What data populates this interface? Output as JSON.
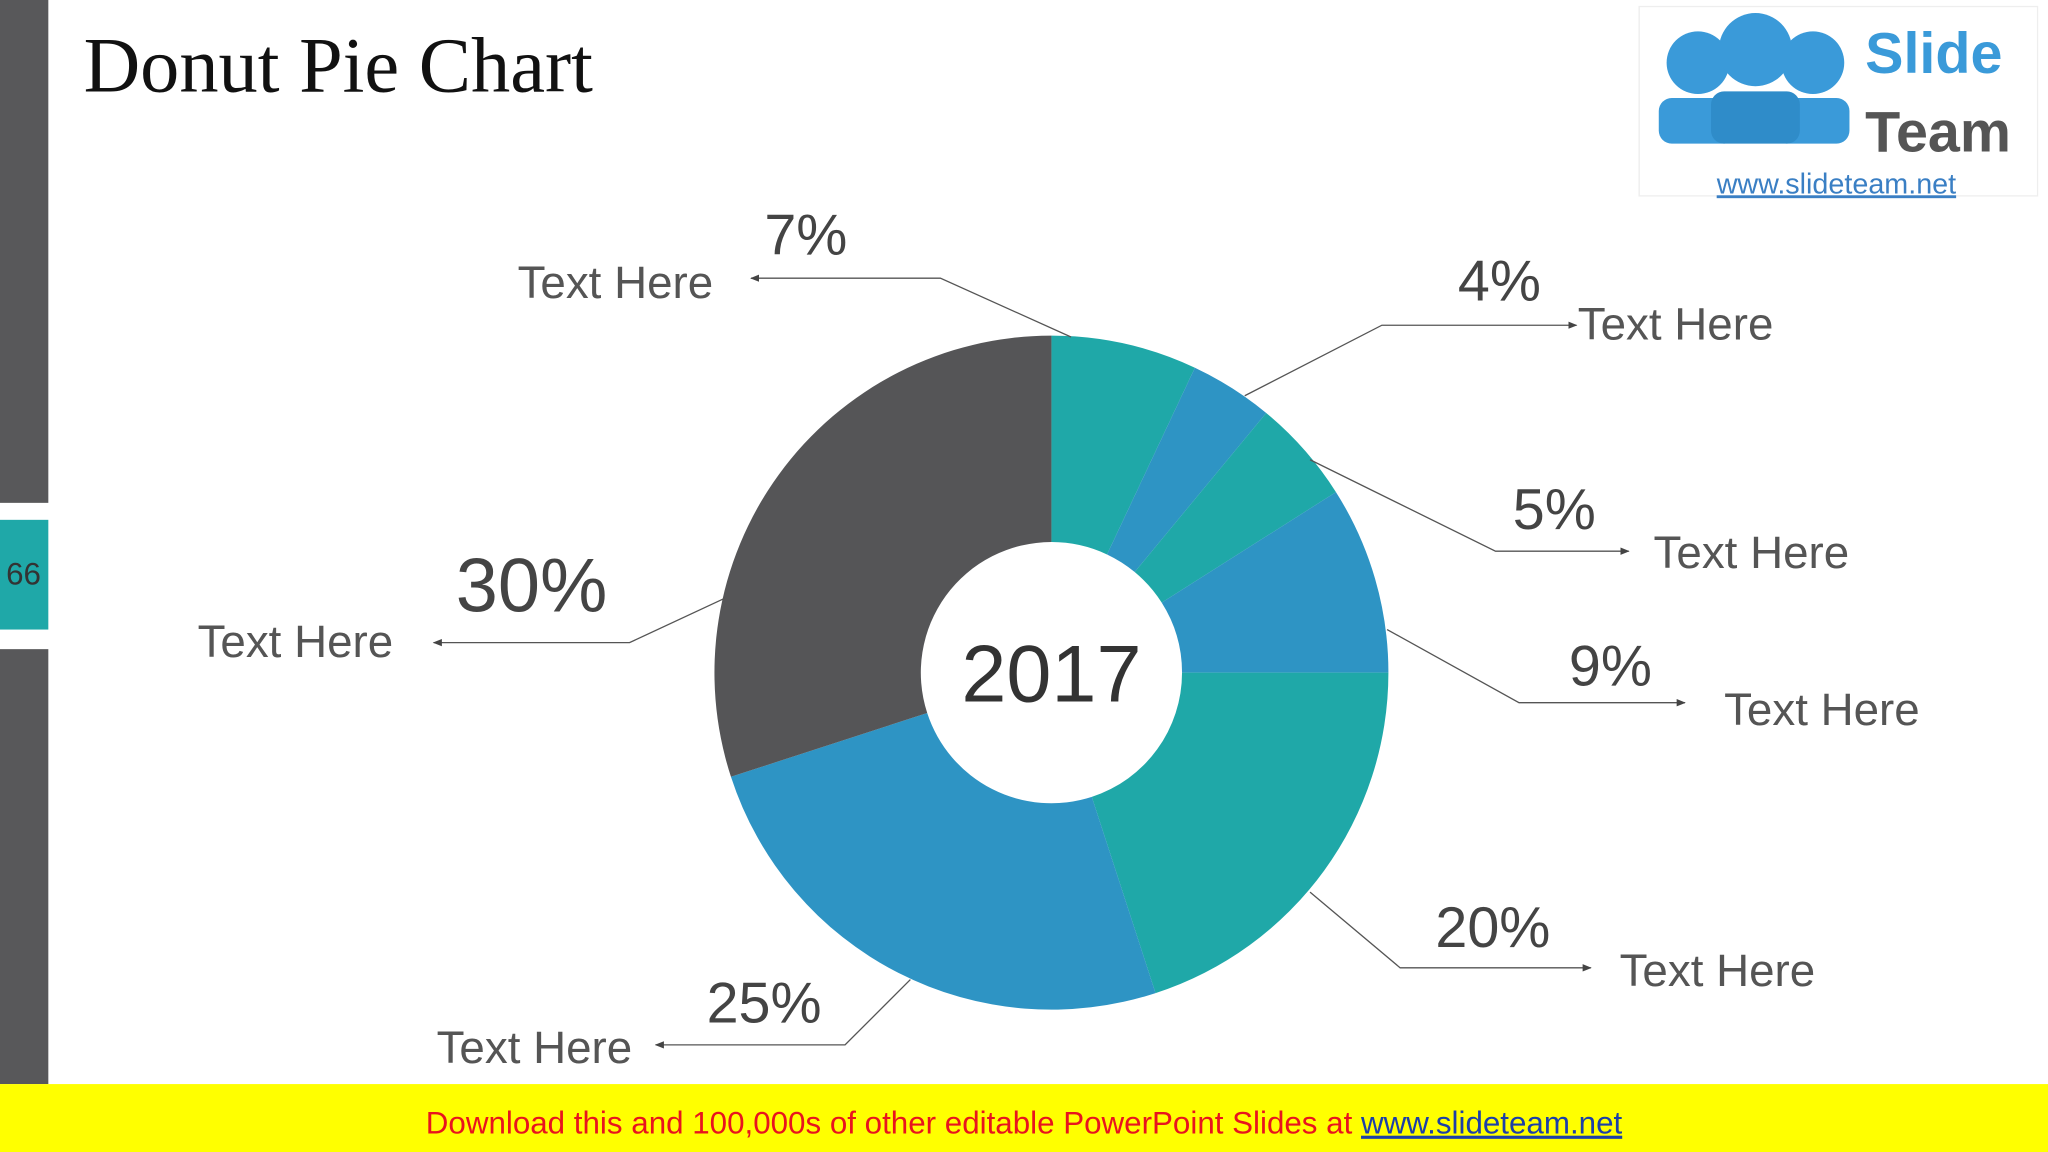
{
  "chart_data": {
    "type": "donut",
    "title": "Donut Pie Chart",
    "center_label": "2017",
    "categories": [
      "Text Here",
      "Text Here",
      "Text Here",
      "Text Here",
      "Text Here",
      "Text Here",
      "Text Here"
    ],
    "values": [
      7,
      4,
      5,
      9,
      20,
      25,
      30
    ],
    "value_labels": [
      "7%",
      "4%",
      "5%",
      "9%",
      "20%",
      "25%",
      "30%"
    ],
    "colors": [
      "#1fa8a8",
      "#2e94c4",
      "#1fa8a8",
      "#2e94c4",
      "#1fa8a8",
      "#2e94c4",
      "#555557"
    ]
  },
  "page_number": "66",
  "logo": {
    "line1": "Slide",
    "line2": "Team",
    "url": "www.slideteam.net"
  },
  "footer": {
    "text": "Download this and 100,000s of other editable PowerPoint Slides at ",
    "link": "www.slideteam.net"
  }
}
